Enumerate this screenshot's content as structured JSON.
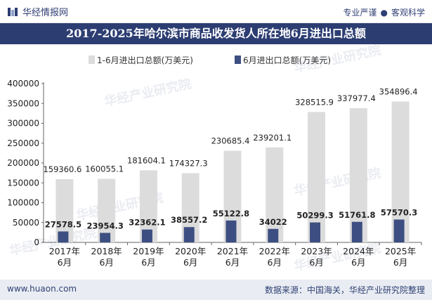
{
  "header": {
    "brand": "华经情报网",
    "tagline_left": "专业严谨",
    "tagline_right": "客观科学"
  },
  "title": "2017-2025年哈尔滨市商品收发货人所在地6月进出口总额",
  "footer": {
    "site": "www.huaon.com",
    "source": "数据来源：中国海关，华经产业研究院整理"
  },
  "colors": {
    "series1": "#dcdcdc",
    "series2": "#3d4f82",
    "brand": "#2c3d72"
  },
  "chart_data": {
    "type": "bar",
    "title": "2017-2025年哈尔滨市商品收发货人所在地6月进出口总额",
    "categories": [
      "2017年6月",
      "2018年6月",
      "2019年6月",
      "2020年6月",
      "2021年6月",
      "2022年6月",
      "2023年6月",
      "2024年6月",
      "2025年6月"
    ],
    "category_lines": [
      [
        "2017年",
        "6月"
      ],
      [
        "2018年",
        "6月"
      ],
      [
        "2019年",
        "6月"
      ],
      [
        "2020年",
        "6月"
      ],
      [
        "2021年",
        "6月"
      ],
      [
        "2022年",
        "6月"
      ],
      [
        "2023年",
        "6月"
      ],
      [
        "2024年",
        "6月"
      ],
      [
        "2025年",
        "6月"
      ]
    ],
    "series": [
      {
        "name": "1-6月进出口总额(万美元)",
        "values": [
          159360.6,
          160055.1,
          181604.1,
          174327.3,
          230685.4,
          239201.1,
          328515.9,
          337977.4,
          354896.4
        ],
        "labels": [
          "159360.6",
          "160055.1",
          "181604.1",
          "174327.3",
          "230685.4",
          "239201.1",
          "328515.9",
          "337977.4",
          "354896.4"
        ]
      },
      {
        "name": "6月进出口总额(万美元)",
        "values": [
          27578.5,
          23954.3,
          32362.1,
          38557.2,
          55122.8,
          34022,
          50299.3,
          51761.8,
          57570.3
        ],
        "labels": [
          "27578.5",
          "23954.3",
          "32362.1",
          "38557.2",
          "55122.8",
          "34022",
          "50299.3",
          "51761.8",
          "57570.3"
        ]
      }
    ],
    "yticks": [
      "0",
      "50000",
      "100000",
      "150000",
      "200000",
      "250000",
      "300000",
      "350000",
      "400000"
    ],
    "ylim": [
      0,
      400000
    ],
    "xlabel": "",
    "ylabel": "",
    "legend": "top-center",
    "watermark": "华经产业研究院"
  }
}
